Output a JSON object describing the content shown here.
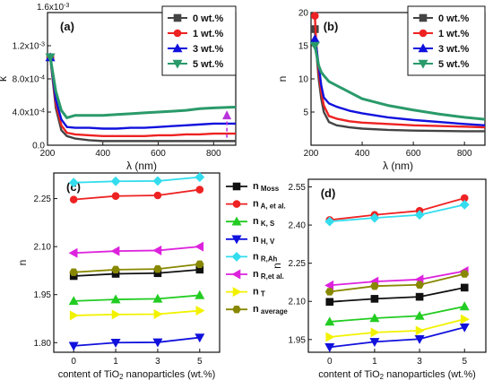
{
  "colors": {
    "black": "#111111",
    "red": "#ee2222",
    "green": "#22cc22",
    "blue": "#1111dd",
    "cyan": "#33ddee",
    "magenta": "#dd22dd",
    "yellow": "#f2f200",
    "olive": "#888800",
    "arrow": "#bb33dd",
    "teal": "#2a9a6a",
    "gray": "#444444"
  },
  "chart_data": [
    {
      "panel_label": "(a)",
      "type": "line",
      "xlabel": "λ (nm)",
      "ylabel": "k",
      "axis_multiplier": "1.6x10-3",
      "xlim": [
        200,
        880
      ],
      "ylim": [
        0,
        0.0016
      ],
      "xticks": [
        200,
        400,
        600,
        800
      ],
      "yticks": [
        {
          "v": 0,
          "t": "0.0"
        },
        {
          "v": 0.0004,
          "t": "4.0x10-4"
        },
        {
          "v": 0.0008,
          "t": "8.0x10-4"
        },
        {
          "v": 0.0012,
          "t": "1.2x10-3"
        }
      ],
      "x": [
        210,
        230,
        250,
        270,
        300,
        350,
        400,
        450,
        500,
        550,
        600,
        650,
        700,
        750,
        800,
        880
      ],
      "series": [
        {
          "name": "0 wt.%",
          "color": "gray",
          "values": [
            0.00106,
            0.00045,
            0.00018,
            0.00011,
            8e-05,
            6e-05,
            5e-05,
            5e-05,
            5e-05,
            5e-05,
            5e-05,
            5e-05,
            5e-05,
            5e-05,
            5e-05,
            5e-05
          ]
        },
        {
          "name": "1 wt.%",
          "color": "red",
          "values": [
            0.00106,
            0.0005,
            0.00024,
            0.00015,
            0.00013,
            0.00012,
            0.00011,
            0.00011,
            0.00011,
            0.00011,
            0.00012,
            0.00012,
            0.00013,
            0.00013,
            0.00014,
            0.00014
          ]
        },
        {
          "name": "3 wt.%",
          "color": "blue",
          "values": [
            0.00106,
            0.00055,
            0.00031,
            0.00022,
            0.00021,
            0.00021,
            0.0002,
            0.0002,
            0.00021,
            0.00021,
            0.00022,
            0.00023,
            0.00024,
            0.00025,
            0.00026,
            0.00026
          ]
        },
        {
          "name": "5 wt.%",
          "color": "teal",
          "values": [
            0.00106,
            0.00065,
            0.00042,
            0.00033,
            0.00036,
            0.00036,
            0.00036,
            0.00037,
            0.00038,
            0.00039,
            0.0004,
            0.00041,
            0.00042,
            0.00044,
            0.00045,
            0.00046
          ]
        }
      ],
      "annotation": {
        "type": "dashed-arrow",
        "x": 848,
        "y_from": 9e-05,
        "y_to": 0.00042
      }
    },
    {
      "panel_label": "(b)",
      "type": "line",
      "xlabel": "λ (nm)",
      "ylabel": "n",
      "xlim": [
        200,
        880
      ],
      "ylim": [
        0,
        20
      ],
      "xticks": [
        200,
        400,
        600,
        800
      ],
      "yticks": [
        {
          "v": 5,
          "t": "5"
        },
        {
          "v": 10,
          "t": "10"
        },
        {
          "v": 15,
          "t": "15"
        },
        {
          "v": 20,
          "t": "20"
        }
      ],
      "x": [
        215,
        220,
        230,
        240,
        250,
        270,
        300,
        350,
        400,
        500,
        600,
        700,
        800,
        880
      ],
      "series": [
        {
          "name": "0 wt.%",
          "color": "gray",
          "values": [
            17.5,
            14.5,
            10,
            7,
            5,
            3.5,
            3.0,
            2.7,
            2.5,
            2.3,
            2.2,
            2.15,
            2.1,
            2.1
          ]
        },
        {
          "name": "1 wt.%",
          "color": "red",
          "values": [
            19.5,
            15.5,
            11,
            8,
            6,
            4.4,
            4.0,
            3.6,
            3.4,
            3.2,
            3.0,
            2.9,
            2.8,
            2.7
          ]
        },
        {
          "name": "3 wt.%",
          "color": "blue",
          "values": [
            16,
            15,
            12,
            9,
            7.2,
            6.3,
            5.8,
            5.2,
            4.8,
            4.2,
            3.8,
            3.5,
            3.2,
            3.0
          ]
        },
        {
          "name": "5 wt.%",
          "color": "teal",
          "values": [
            15,
            14,
            12,
            11,
            10.5,
            9.6,
            9.0,
            8.0,
            7.0,
            6.0,
            5.3,
            4.7,
            4.2,
            3.9
          ]
        }
      ]
    },
    {
      "panel_label": "(c)",
      "type": "line",
      "xlabel": "content of TiO2 nanoparticles (wt.%)",
      "ylabel": "n",
      "categories": [
        "0",
        "1",
        "3",
        "5"
      ],
      "ylim": [
        1.77,
        2.33
      ],
      "yticks": [
        {
          "v": 1.8,
          "t": "1.80"
        },
        {
          "v": 1.95,
          "t": "1.95"
        },
        {
          "v": 2.1,
          "t": "2.10"
        },
        {
          "v": 2.25,
          "t": "2.25"
        }
      ],
      "series": [
        {
          "name": "n Moss",
          "sub": "Moss",
          "color": "black",
          "marker": "square",
          "values": [
            2.008,
            2.015,
            2.017,
            2.028
          ]
        },
        {
          "name": "n A, et al.",
          "sub": "A, et al.",
          "color": "red",
          "marker": "circle",
          "values": [
            2.247,
            2.258,
            2.26,
            2.278
          ]
        },
        {
          "name": "n K, S",
          "sub": "K, S",
          "color": "green",
          "marker": "triangle-up",
          "values": [
            1.93,
            1.935,
            1.937,
            1.948
          ]
        },
        {
          "name": "n H, V",
          "sub": "H, V",
          "color": "blue",
          "marker": "triangle-down",
          "values": [
            1.79,
            1.8,
            1.801,
            1.816
          ]
        },
        {
          "name": "n R,Ah",
          "sub": "R,Ah",
          "color": "cyan",
          "marker": "diamond",
          "values": [
            2.3,
            2.304,
            2.305,
            2.317
          ]
        },
        {
          "name": "n R,et al.",
          "sub": "R,et al.",
          "color": "magenta",
          "marker": "triangle-left",
          "values": [
            2.08,
            2.086,
            2.088,
            2.1
          ]
        },
        {
          "name": "n T",
          "sub": "T",
          "color": "yellow",
          "marker": "triangle-right",
          "values": [
            1.885,
            1.888,
            1.889,
            1.9
          ]
        },
        {
          "name": "n average",
          "sub": "average",
          "color": "olive",
          "marker": "hexagon",
          "values": [
            2.02,
            2.028,
            2.03,
            2.045
          ]
        }
      ]
    },
    {
      "panel_label": "(d)",
      "type": "line",
      "xlabel": "content of TiO2 nanoparticles (wt.%)",
      "ylabel": "n",
      "categories": [
        "0",
        "1",
        "3",
        "5"
      ],
      "ylim": [
        1.9,
        2.58
      ],
      "yticks": [
        {
          "v": 1.95,
          "t": "1.95"
        },
        {
          "v": 2.1,
          "t": "2.10"
        },
        {
          "v": 2.25,
          "t": "2.25"
        },
        {
          "v": 2.4,
          "t": "2.40"
        },
        {
          "v": 2.55,
          "t": "2.55"
        }
      ],
      "series": [
        {
          "name": "n Moss",
          "color": "black",
          "marker": "square",
          "values": [
            2.098,
            2.11,
            2.118,
            2.154
          ]
        },
        {
          "name": "n A, et al.",
          "color": "red",
          "marker": "circle",
          "values": [
            2.42,
            2.44,
            2.456,
            2.506
          ]
        },
        {
          "name": "n K, S",
          "color": "green",
          "marker": "triangle-up",
          "values": [
            2.02,
            2.034,
            2.043,
            2.08
          ]
        },
        {
          "name": "n H, V",
          "color": "blue",
          "marker": "triangle-down",
          "values": [
            1.92,
            1.941,
            1.952,
            1.998
          ]
        },
        {
          "name": "n R,Ah",
          "color": "cyan",
          "marker": "diamond",
          "values": [
            2.414,
            2.428,
            2.44,
            2.48
          ]
        },
        {
          "name": "n R,et al.",
          "color": "magenta",
          "marker": "triangle-left",
          "values": [
            2.163,
            2.178,
            2.186,
            2.219
          ]
        },
        {
          "name": "n T",
          "color": "yellow",
          "marker": "triangle-right",
          "values": [
            1.96,
            1.978,
            1.985,
            2.03
          ]
        },
        {
          "name": "n average",
          "color": "olive",
          "marker": "hexagon",
          "values": [
            2.138,
            2.16,
            2.165,
            2.208
          ]
        }
      ]
    }
  ]
}
